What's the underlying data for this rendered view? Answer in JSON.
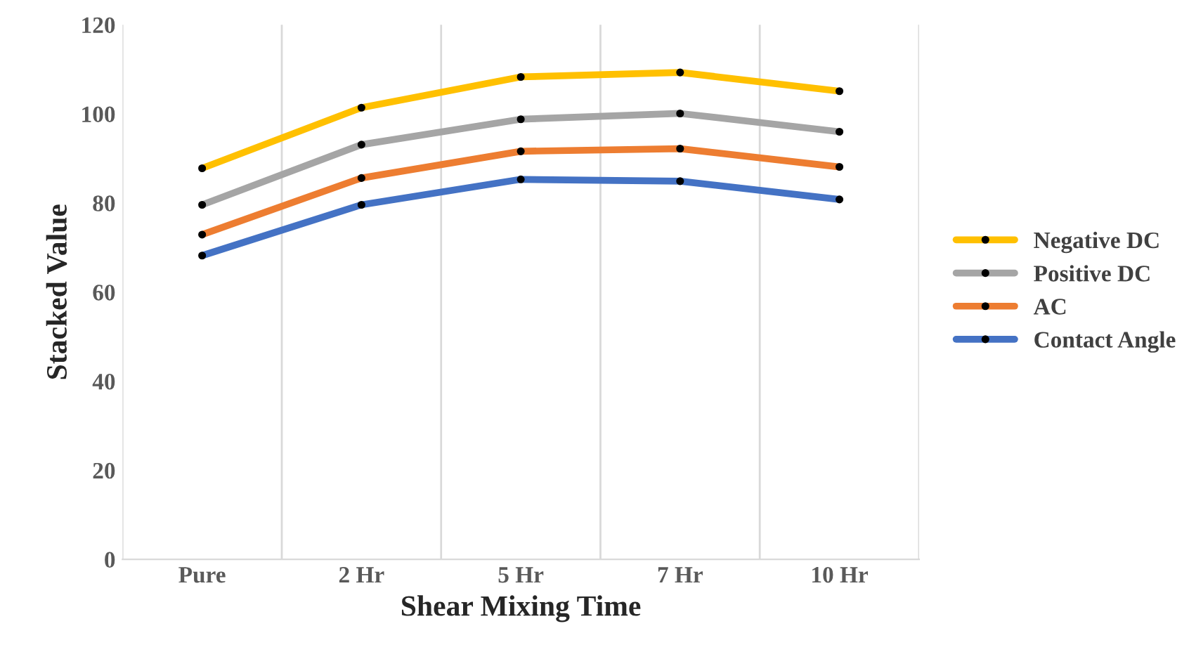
{
  "chart_data": {
    "type": "line",
    "xlabel": "Shear Mixing Time",
    "ylabel": "Stacked Value",
    "categories": [
      "Pure",
      "2 Hr",
      "5 Hr",
      "7 Hr",
      "10 Hr"
    ],
    "series": [
      {
        "name": "Negative DC",
        "color": "#ffc000",
        "values": [
          87.8,
          101.4,
          108.3,
          109.3,
          105.1
        ]
      },
      {
        "name": "Positive DC",
        "color": "#a5a5a5",
        "values": [
          79.6,
          93.1,
          98.8,
          100.1,
          96.0
        ]
      },
      {
        "name": "AC",
        "color": "#ed7d31",
        "values": [
          72.9,
          85.6,
          91.6,
          92.2,
          88.1
        ]
      },
      {
        "name": "Contact Angle",
        "color": "#4472c4",
        "values": [
          68.2,
          79.6,
          85.3,
          84.9,
          80.8
        ]
      }
    ],
    "ylim": [
      0,
      120
    ],
    "yticks": [
      0,
      20,
      40,
      60,
      80,
      100,
      120
    ],
    "grid": "x",
    "legend": "right",
    "marker": "circle",
    "line_style": "solid"
  }
}
